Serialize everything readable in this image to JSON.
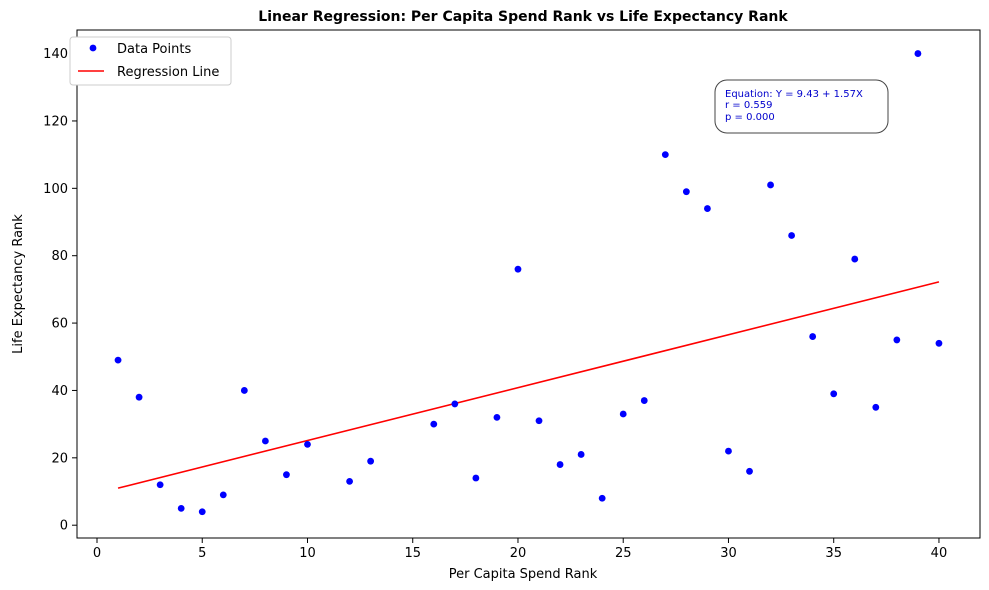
{
  "chart_data": {
    "type": "scatter",
    "title": "Linear Regression: Per Capita Spend Rank vs Life Expectancy Rank",
    "xlabel": "Per Capita Spend Rank",
    "ylabel": "Life Expectancy Rank",
    "xlim": [
      -0.95,
      41.95
    ],
    "ylim": [
      -3.8,
      147.0
    ],
    "x_ticks": [
      0,
      5,
      10,
      15,
      20,
      25,
      30,
      35,
      40
    ],
    "y_ticks": [
      0,
      20,
      40,
      60,
      80,
      100,
      120,
      140
    ],
    "grid": false,
    "legend_position": "top-left",
    "series": [
      {
        "name": "Data Points",
        "kind": "scatter",
        "color": "#0000ff",
        "x": [
          1,
          2,
          3,
          4,
          5,
          6,
          7,
          8,
          9,
          10,
          12,
          13,
          16,
          17,
          18,
          19,
          20,
          21,
          22,
          23,
          24,
          25,
          26,
          27,
          28,
          29,
          30,
          31,
          32,
          33,
          34,
          35,
          36,
          37,
          38,
          39,
          40
        ],
        "y": [
          49,
          38,
          12,
          5,
          4,
          9,
          40,
          25,
          15,
          24,
          13,
          19,
          30,
          36,
          14,
          32,
          76,
          31,
          18,
          21,
          8,
          33,
          37,
          110,
          99,
          94,
          22,
          16,
          101,
          86,
          56,
          39,
          79,
          35,
          55,
          140,
          54
        ]
      },
      {
        "name": "Regression Line",
        "kind": "line",
        "color": "#ff0000",
        "intercept": 9.43,
        "slope": 1.57,
        "x_range": [
          1,
          40
        ]
      }
    ],
    "annotation": {
      "lines": [
        "Equation: Y = 9.43 + 1.57X",
        "r = 0.559",
        "p = 0.000"
      ],
      "position": "upper-right",
      "color": "#0000cc"
    }
  }
}
